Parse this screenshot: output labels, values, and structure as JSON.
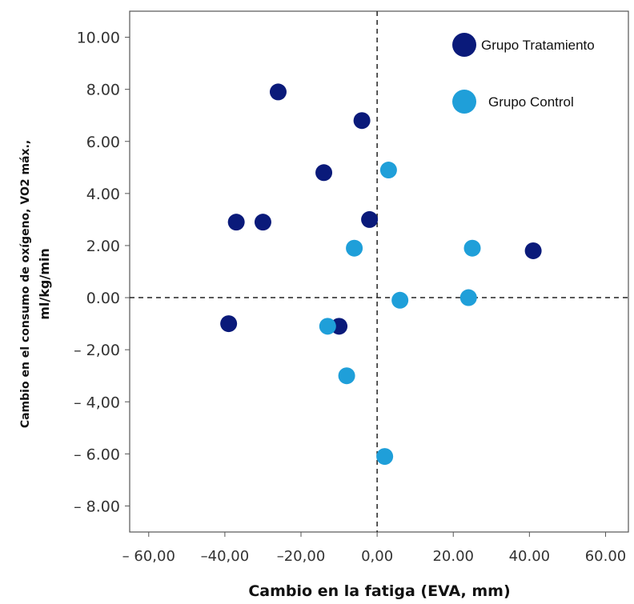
{
  "chart_data": {
    "type": "scatter",
    "xlabel": "Cambio en la fatiga (EVA, mm)",
    "ylabel_line1": "Cambio en el consumo de oxígeno, VO2 máx.,",
    "ylabel_line2": "ml/kg/min",
    "xlim": [
      -65,
      66
    ],
    "ylim": [
      -9,
      11
    ],
    "x_ticks": [
      {
        "value": -60,
        "label": "– 60,00"
      },
      {
        "value": -40,
        "label": "–40,00"
      },
      {
        "value": -20,
        "label": "–20,00"
      },
      {
        "value": 0,
        "label": "0,00"
      },
      {
        "value": 20,
        "label": "20.00"
      },
      {
        "value": 40,
        "label": "40.00"
      },
      {
        "value": 60,
        "label": "60.00"
      }
    ],
    "y_ticks": [
      {
        "value": 10,
        "label": "10.00"
      },
      {
        "value": 8,
        "label": "8.00"
      },
      {
        "value": 6,
        "label": "6.00"
      },
      {
        "value": 4,
        "label": "4.00"
      },
      {
        "value": 2,
        "label": "2.00"
      },
      {
        "value": 0,
        "label": "0.00"
      },
      {
        "value": -2,
        "label": "– 2,00"
      },
      {
        "value": -4,
        "label": "– 4,00"
      },
      {
        "value": -6,
        "label": "– 6.00"
      },
      {
        "value": -8,
        "label": "– 8.00"
      }
    ],
    "reference_lines": {
      "x": 0,
      "y": 0,
      "style": "dashed"
    },
    "grid": false,
    "legend_position": "top-right",
    "series": [
      {
        "name": "Grupo Tratamiento",
        "color": "#0a1a7a",
        "points": [
          {
            "x": -26,
            "y": 7.9
          },
          {
            "x": -4,
            "y": 6.8
          },
          {
            "x": -14,
            "y": 4.8
          },
          {
            "x": -37,
            "y": 2.9
          },
          {
            "x": -30,
            "y": 2.9
          },
          {
            "x": -2,
            "y": 3.0
          },
          {
            "x": 41,
            "y": 1.8
          },
          {
            "x": -39,
            "y": -1.0
          },
          {
            "x": -10,
            "y": -1.1
          }
        ]
      },
      {
        "name": "Grupo Control",
        "color": "#1f9fd9",
        "points": [
          {
            "x": 3,
            "y": 4.9
          },
          {
            "x": -6,
            "y": 1.9
          },
          {
            "x": 25,
            "y": 1.9
          },
          {
            "x": 6,
            "y": -0.1
          },
          {
            "x": 24,
            "y": 0.0
          },
          {
            "x": -13,
            "y": -1.1
          },
          {
            "x": -8,
            "y": -3.0
          },
          {
            "x": 2,
            "y": -6.1
          }
        ]
      }
    ]
  }
}
